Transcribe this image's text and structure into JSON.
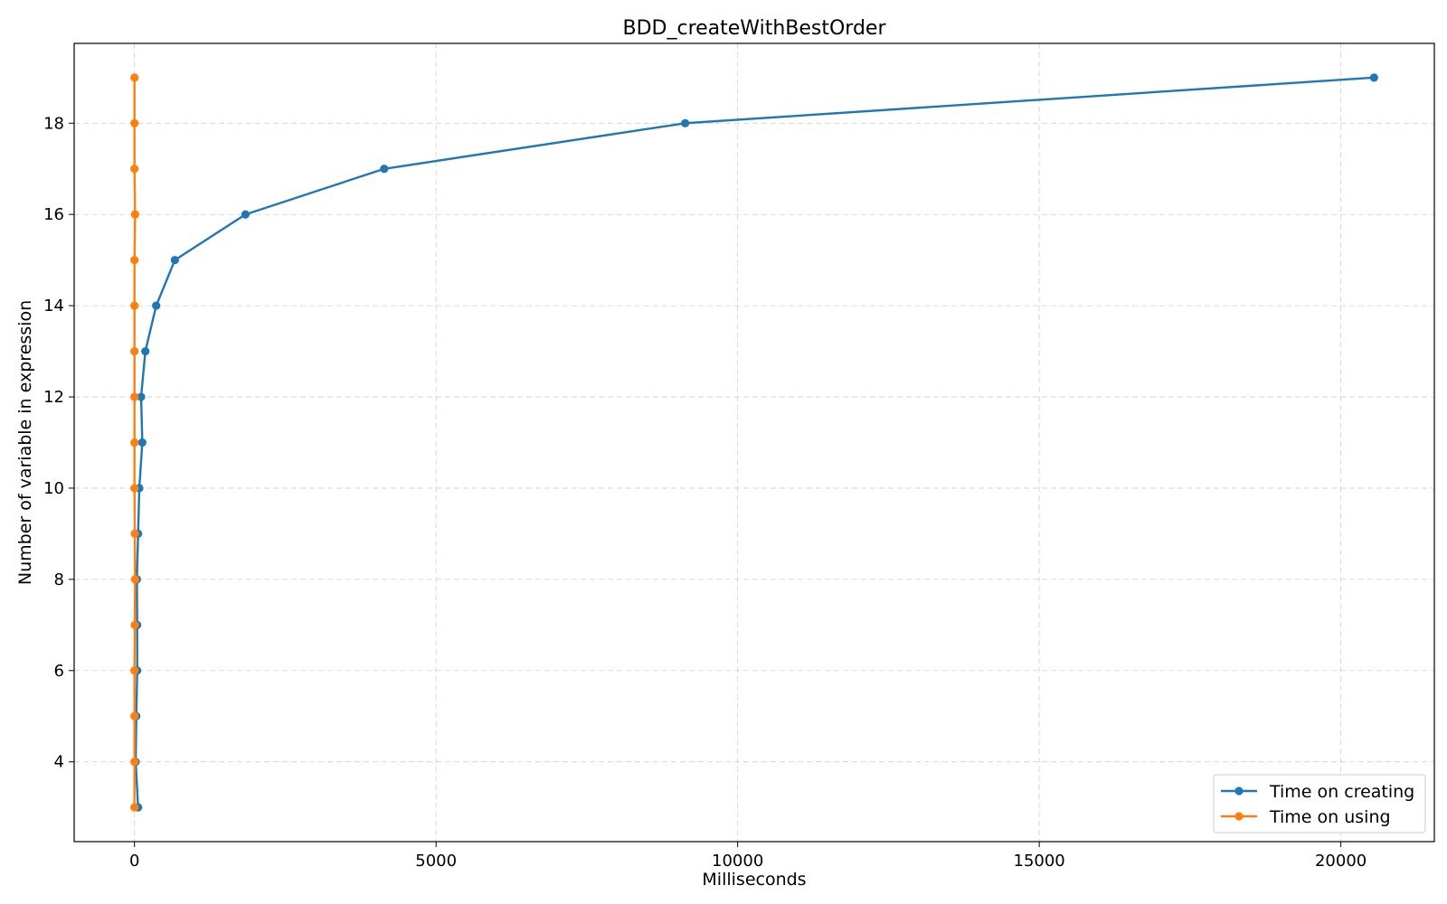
{
  "chart_data": {
    "type": "line",
    "title": "BDD_createWithBestOrder",
    "xlabel": "Milliseconds",
    "ylabel": "Number of variable in expression",
    "xlim": [
      -1000,
      21550
    ],
    "ylim": [
      2.25,
      19.75
    ],
    "xticks": [
      0,
      5000,
      10000,
      15000,
      20000
    ],
    "yticks": [
      4,
      6,
      8,
      10,
      12,
      14,
      16,
      18
    ],
    "grid": true,
    "legend_position": "lower-right",
    "series": [
      {
        "name": "Time on creating",
        "color": "#1f77b4",
        "x": [
          60,
          20,
          30,
          45,
          45,
          40,
          60,
          80,
          130,
          110,
          180,
          360,
          670,
          1840,
          4140,
          9130,
          20550
        ],
        "y": [
          3,
          4,
          5,
          6,
          7,
          8,
          9,
          10,
          11,
          12,
          13,
          14,
          15,
          16,
          17,
          18,
          19
        ]
      },
      {
        "name": "Time on using",
        "color": "#ff7f0e",
        "x": [
          0,
          0,
          0,
          0,
          5,
          10,
          5,
          0,
          0,
          0,
          0,
          0,
          0,
          10,
          0,
          0,
          0
        ],
        "y": [
          3,
          4,
          5,
          6,
          7,
          8,
          9,
          10,
          11,
          12,
          13,
          14,
          15,
          16,
          17,
          18,
          19
        ]
      }
    ]
  }
}
